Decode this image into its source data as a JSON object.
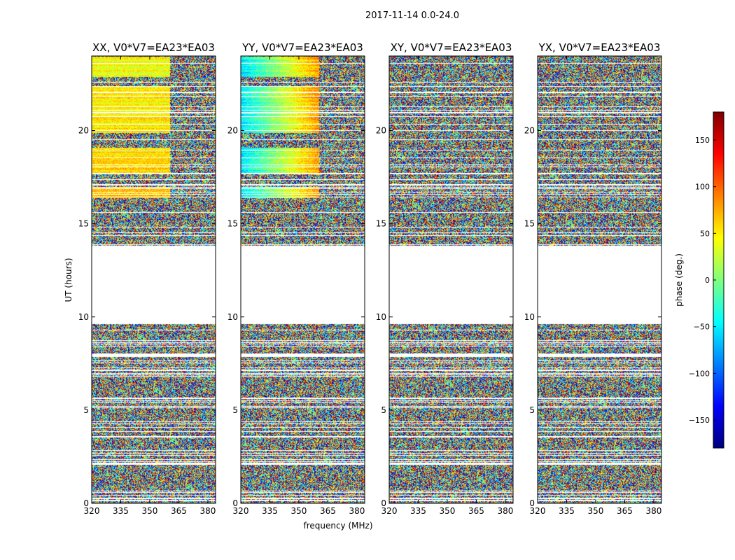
{
  "figure_title": "2017-11-14 0.0-24.0",
  "colors": {
    "colormap": [
      "#00007f",
      "#0000ff",
      "#007fff",
      "#00ffff",
      "#7fff7f",
      "#ffff00",
      "#ff7f00",
      "#ff0000",
      "#7f0000"
    ],
    "frame": "#000000",
    "background": "#ffffff"
  },
  "chart_data": {
    "type": "heatmap",
    "xlabel": "frequency (MHz)",
    "ylabel": "UT (hours)",
    "xlim": [
      320,
      384
    ],
    "ylim": [
      0,
      24
    ],
    "xticks": [
      320,
      335,
      350,
      365,
      380
    ],
    "yticks": [
      0,
      5,
      10,
      15,
      20
    ],
    "colorbar": {
      "label": "phase (deg.)",
      "range": [
        -180,
        180
      ],
      "ticks": [
        -150,
        -100,
        -50,
        0,
        50,
        100,
        150
      ],
      "tick_labels": [
        "−150",
        "−100",
        "−50",
        "0",
        "50",
        "100",
        "150"
      ]
    },
    "blank_intervals_hours": [
      [
        9.65,
        13.85
      ]
    ],
    "coherent_fringe_segments_hours": [
      [
        16.4,
        17.0
      ],
      [
        17.7,
        19.1
      ],
      [
        19.9,
        22.4
      ],
      [
        22.9,
        24.0
      ]
    ],
    "panels": [
      {
        "title": "XX, V0*V7=EA23*EA03",
        "polarization": "XX",
        "coherent": true
      },
      {
        "title": "YY, V0*V7=EA23*EA03",
        "polarization": "YY",
        "coherent": true
      },
      {
        "title": "XY, V0*V7=EA23*EA03",
        "polarization": "XY",
        "coherent": false
      },
      {
        "title": "YX, V0*V7=EA23*EA03",
        "polarization": "YX",
        "coherent": false
      }
    ]
  }
}
